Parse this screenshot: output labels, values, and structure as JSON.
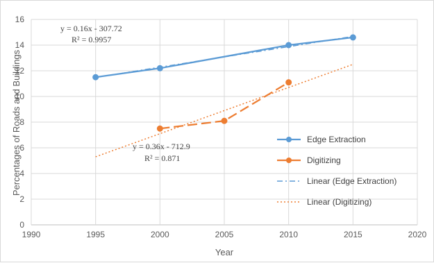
{
  "chart_data": {
    "type": "line",
    "xlabel": "Year",
    "ylabel": "Percentages of Roads and Buildings",
    "xlim": [
      1990,
      2020
    ],
    "ylim": [
      0,
      16
    ],
    "xticks": [
      1990,
      1995,
      2000,
      2005,
      2010,
      2015,
      2020
    ],
    "yticks": [
      0,
      2,
      4,
      6,
      8,
      10,
      12,
      14,
      16
    ],
    "grid": true,
    "legend_position": "right",
    "series": [
      {
        "name": "Edge Extraction",
        "x": [
          1995,
          2000,
          2010,
          2015
        ],
        "y": [
          11.5,
          12.2,
          14.0,
          14.6
        ],
        "color": "#5b9bd5",
        "marker": "circle",
        "style": "solid"
      },
      {
        "name": "Digitizing",
        "x": [
          2000,
          2005,
          2010
        ],
        "y": [
          7.5,
          8.1,
          11.1
        ],
        "color": "#ed7d31",
        "marker": "circle",
        "style": "long-dash"
      }
    ],
    "trendlines": [
      {
        "name": "Linear (Edge Extraction)",
        "x": [
          1995,
          2015
        ],
        "y": [
          11.48,
          14.68
        ],
        "color": "#5b9bd5",
        "style": "dash-dot",
        "equation": "y = 0.16x - 307.72",
        "r2": "R² = 0.9957"
      },
      {
        "name": "Linear (Digitizing)",
        "x": [
          1995,
          2015
        ],
        "y": [
          5.3,
          12.5
        ],
        "color": "#ed7d31",
        "style": "dotted",
        "equation": "y = 0.36x - 712.9",
        "r2": "R² = 0.871"
      }
    ]
  }
}
